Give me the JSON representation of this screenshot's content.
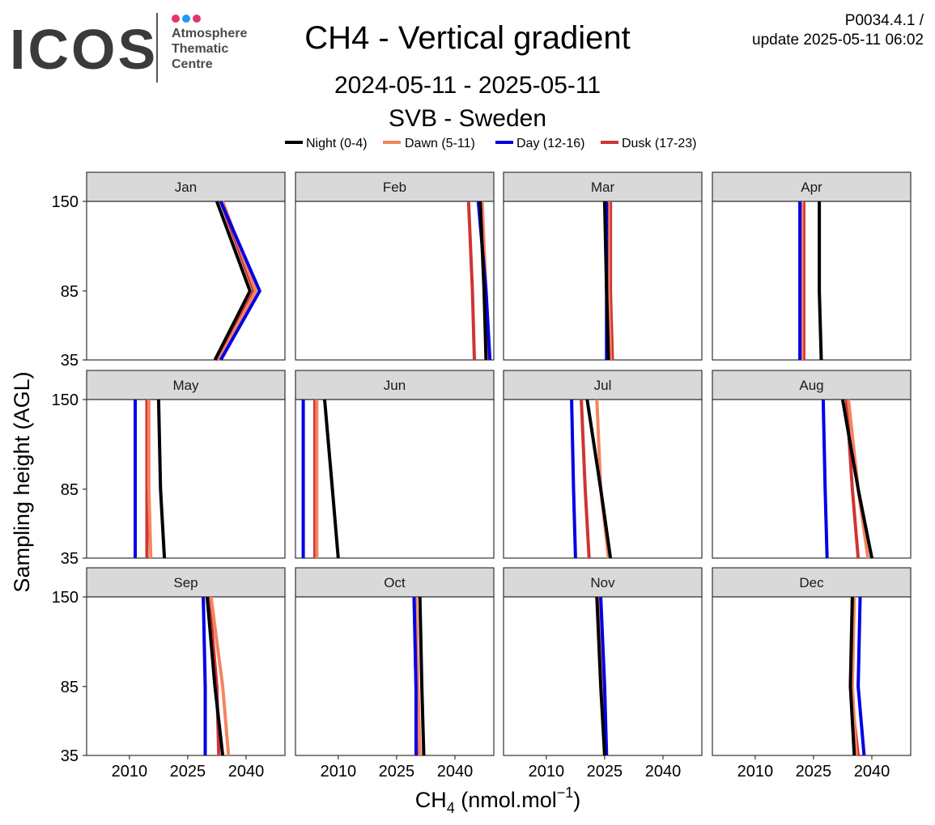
{
  "logo": {
    "word": "ICOS",
    "line1": "Atmosphere",
    "line2": "Thematic",
    "line3": "Centre",
    "dot_colors": [
      "#e8336e",
      "#1e9cef",
      "#e8336e"
    ]
  },
  "header": {
    "title": "CH4 - Vertical gradient",
    "period": "2024-05-11 - 2025-05-11",
    "station": "SVB - Sweden",
    "product_code": "P0034.4.1 /",
    "update": "update  2025-05-11 06:02"
  },
  "chart_data": {
    "type": "line",
    "ylabel": "Sampling height (AGL)",
    "xlabel": "CH4 (nmol.mol-1)",
    "xlabel_main": "CH",
    "xlabel_sub": "4",
    "xlabel_unit": " (nmol.mol",
    "xlabel_sup": "−1",
    "xlabel_end": ")",
    "xlim": [
      1999,
      2050
    ],
    "xticks": [
      2010,
      2025,
      2040
    ],
    "ylim": [
      35,
      150
    ],
    "yticks": [
      35,
      85,
      150
    ],
    "heights": [
      35,
      85,
      150
    ],
    "legend_position": "top",
    "series": [
      {
        "name": "Night (0-4)",
        "color": "#000000"
      },
      {
        "name": "Dawn (5-11)",
        "color": "#f4845f"
      },
      {
        "name": "Day (12-16)",
        "color": "#0000e6"
      },
      {
        "name": "Dusk (17-23)",
        "color": "#d03434"
      }
    ],
    "panels": [
      {
        "month": "Jan",
        "values": {
          "Night (0-4)": [
            2032.0,
            2041.0,
            2032.5
          ],
          "Dawn (5-11)": [
            2033.0,
            2042.5,
            2034.0
          ],
          "Day (12-16)": [
            2033.5,
            2043.5,
            2033.5
          ],
          "Dusk (17-23)": [
            2032.5,
            2042.0,
            2033.5
          ]
        }
      },
      {
        "month": "Feb",
        "values": {
          "Night (0-4)": [
            2048.0,
            2047.5,
            2046.5
          ],
          "Dawn (5-11)": [
            2048.5,
            2048.0,
            2047.0
          ],
          "Day (12-16)": [
            2049.0,
            2048.0,
            2046.0
          ],
          "Dusk (17-23)": [
            2045.0,
            2044.5,
            2043.5
          ]
        }
      },
      {
        "month": "Mar",
        "values": {
          "Night (0-4)": [
            2026.0,
            2025.5,
            2025.0
          ],
          "Dawn (5-11)": [
            2026.5,
            2026.0,
            2026.0
          ],
          "Day (12-16)": [
            2025.5,
            2025.5,
            2025.5
          ],
          "Dusk (17-23)": [
            2027.0,
            2026.5,
            2026.5
          ]
        }
      },
      {
        "month": "Apr",
        "values": {
          "Night (0-4)": [
            2027.0,
            2026.5,
            2026.5
          ],
          "Dawn (5-11)": [
            2022.0,
            2022.0,
            2022.0
          ],
          "Day (12-16)": [
            2021.5,
            2021.5,
            2021.5
          ],
          "Dusk (17-23)": [
            2022.5,
            2022.5,
            2022.5
          ]
        }
      },
      {
        "month": "May",
        "values": {
          "Night (0-4)": [
            2019.0,
            2018.0,
            2017.5
          ],
          "Dawn (5-11)": [
            2015.5,
            2015.0,
            2015.0
          ],
          "Day (12-16)": [
            2011.5,
            2011.5,
            2011.5
          ],
          "Dusk (17-23)": [
            2014.5,
            2014.5,
            2014.5
          ]
        }
      },
      {
        "month": "Jun",
        "values": {
          "Night (0-4)": [
            2010.0,
            2008.5,
            2006.5
          ],
          "Dawn (5-11)": [
            2004.5,
            2004.5,
            2004.5
          ],
          "Day (12-16)": [
            2001.0,
            2001.0,
            2001.0
          ],
          "Dusk (17-23)": [
            2004.0,
            2004.0,
            2004.0
          ]
        }
      },
      {
        "month": "Jul",
        "values": {
          "Night (0-4)": [
            2026.5,
            2024.0,
            2020.5
          ],
          "Dawn (5-11)": [
            2026.0,
            2024.0,
            2023.0
          ],
          "Day (12-16)": [
            2017.5,
            2017.0,
            2016.5
          ],
          "Dusk (17-23)": [
            2021.0,
            2020.0,
            2019.0
          ]
        }
      },
      {
        "month": "Aug",
        "values": {
          "Night (0-4)": [
            2040.0,
            2036.5,
            2032.5
          ],
          "Dawn (5-11)": [
            2039.0,
            2036.5,
            2034.0
          ],
          "Day (12-16)": [
            2028.5,
            2028.0,
            2027.5
          ],
          "Dusk (17-23)": [
            2036.5,
            2035.0,
            2033.5
          ]
        }
      },
      {
        "month": "Sep",
        "values": {
          "Night (0-4)": [
            2034.0,
            2032.0,
            2030.0
          ],
          "Dawn (5-11)": [
            2035.5,
            2034.0,
            2031.0
          ],
          "Day (12-16)": [
            2029.5,
            2029.5,
            2029.0
          ],
          "Dusk (17-23)": [
            2033.0,
            2032.5,
            2030.5
          ]
        }
      },
      {
        "month": "Oct",
        "values": {
          "Night (0-4)": [
            2032.0,
            2031.5,
            2031.0
          ],
          "Dawn (5-11)": [
            2031.0,
            2030.5,
            2030.0
          ],
          "Day (12-16)": [
            2030.0,
            2030.0,
            2029.5
          ],
          "Dusk (17-23)": [
            2030.5,
            2030.0,
            2029.5
          ]
        }
      },
      {
        "month": "Nov",
        "values": {
          "Night (0-4)": [
            2025.0,
            2024.0,
            2023.0
          ],
          "Dawn (5-11)": [
            2025.5,
            2024.5,
            2023.5
          ],
          "Day (12-16)": [
            2025.5,
            2025.0,
            2024.0
          ],
          "Dusk (17-23)": [
            2025.0,
            2024.5,
            2023.5
          ]
        }
      },
      {
        "month": "Dec",
        "values": {
          "Night (0-4)": [
            2035.5,
            2034.5,
            2035.0
          ],
          "Dawn (5-11)": [
            2036.0,
            2035.0,
            2035.5
          ],
          "Day (12-16)": [
            2038.0,
            2036.5,
            2037.0
          ],
          "Dusk (17-23)": [
            2036.5,
            2034.5,
            2035.0
          ]
        }
      }
    ]
  }
}
